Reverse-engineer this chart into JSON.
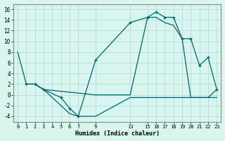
{
  "xlabel": "Humidex (Indice chaleur)",
  "bg_color": "#d8f5f0",
  "grid_color": "#b8e0d8",
  "line_color": "#006666",
  "xlim": [
    -0.5,
    23.5
  ],
  "ylim": [
    -5,
    17
  ],
  "xticks": [
    0,
    1,
    2,
    3,
    4,
    5,
    6,
    7,
    9,
    13,
    15,
    16,
    17,
    18,
    19,
    20,
    21,
    22,
    23
  ],
  "xtick_labels": [
    "0",
    "1",
    "2",
    "3",
    "4",
    "5",
    "6",
    "7",
    "9",
    "13",
    "15",
    "16",
    "17",
    "18",
    "19",
    "20",
    "21",
    "22",
    "23"
  ],
  "yticks": [
    -4,
    -2,
    0,
    2,
    4,
    6,
    8,
    10,
    12,
    14,
    16
  ],
  "series": [
    {
      "x": [
        0,
        1,
        2,
        3,
        6,
        7,
        9,
        13,
        15,
        16,
        17,
        18,
        19,
        20,
        21,
        22,
        23
      ],
      "y": [
        8,
        2,
        2,
        1,
        -3.5,
        -4,
        -4,
        -0.5,
        -0.5,
        -0.5,
        -0.5,
        -0.5,
        -0.5,
        -0.5,
        -0.5,
        -0.5,
        -0.5
      ],
      "marker": false
    },
    {
      "x": [
        1,
        2,
        3,
        5,
        6,
        7,
        9,
        13,
        15,
        16,
        17,
        18,
        19,
        20,
        21,
        22,
        23
      ],
      "y": [
        2,
        2,
        1,
        -0.5,
        -2.5,
        -4,
        6.5,
        13.5,
        14.5,
        15.5,
        14.5,
        14.5,
        10.5,
        10.5,
        5.5,
        7,
        1
      ],
      "marker": true
    },
    {
      "x": [
        1,
        2,
        3,
        9,
        13,
        15,
        16,
        17,
        18,
        19,
        20,
        21,
        22,
        23
      ],
      "y": [
        2,
        2,
        1,
        0,
        0,
        14.5,
        14.5,
        13.5,
        13,
        10.5,
        -0.5,
        -0.5,
        -0.5,
        1
      ],
      "marker": false
    }
  ]
}
